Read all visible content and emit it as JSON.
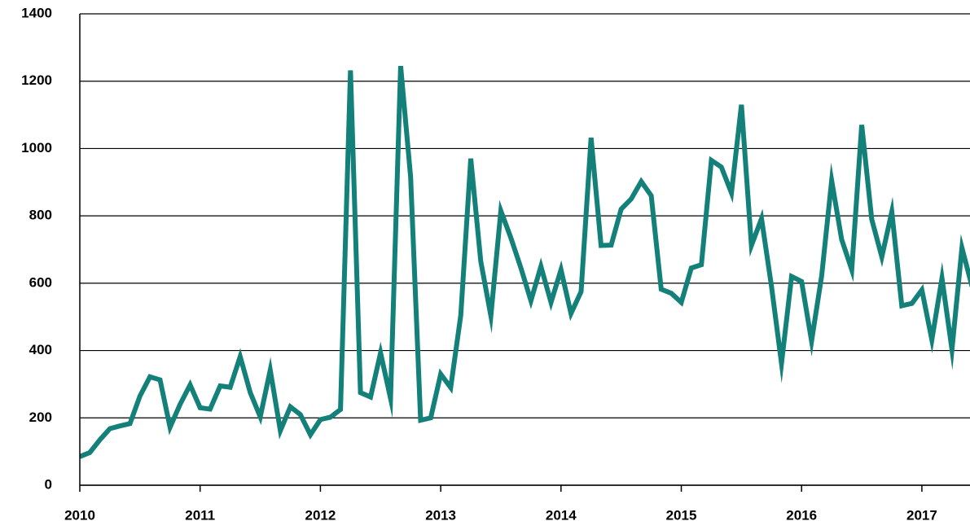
{
  "chart_data": {
    "type": "line",
    "x": [
      2010,
      2010.083,
      2010.167,
      2010.25,
      2010.333,
      2010.417,
      2010.5,
      2010.583,
      2010.667,
      2010.75,
      2010.833,
      2010.917,
      2011,
      2011.083,
      2011.167,
      2011.25,
      2011.333,
      2011.417,
      2011.5,
      2011.583,
      2011.667,
      2011.75,
      2011.833,
      2011.917,
      2012,
      2012.083,
      2012.167,
      2012.25,
      2012.333,
      2012.417,
      2012.5,
      2012.583,
      2012.667,
      2012.75,
      2012.833,
      2012.917,
      2013,
      2013.083,
      2013.167,
      2013.25,
      2013.333,
      2013.417,
      2013.5,
      2013.583,
      2013.667,
      2013.75,
      2013.833,
      2013.917,
      2014,
      2014.083,
      2014.167,
      2014.25,
      2014.333,
      2014.417,
      2014.5,
      2014.583,
      2014.667,
      2014.75,
      2014.833,
      2014.917,
      2015,
      2015.083,
      2015.167,
      2015.25,
      2015.333,
      2015.417,
      2015.5,
      2015.583,
      2015.667,
      2015.75,
      2015.833,
      2015.917,
      2016,
      2016.083,
      2016.167,
      2016.25,
      2016.333,
      2016.417,
      2016.5,
      2016.583,
      2016.667,
      2016.75,
      2016.833,
      2016.917,
      2017,
      2017.083,
      2017.167,
      2017.25,
      2017.333,
      2017.417
    ],
    "series": [
      {
        "color": "#138079",
        "values": [
          85,
          97,
          135,
          168,
          176,
          183,
          265,
          322,
          313,
          172,
          240,
          298,
          230,
          226,
          295,
          291,
          382,
          275,
          203,
          342,
          162,
          233,
          210,
          150,
          195,
          202,
          225,
          1232,
          275,
          262,
          393,
          258,
          1245,
          915,
          193,
          200,
          330,
          290,
          505,
          970,
          665,
          503,
          815,
          735,
          645,
          548,
          650,
          543,
          640,
          510,
          575,
          1032,
          712,
          713,
          820,
          850,
          902,
          860,
          582,
          570,
          543,
          645,
          655,
          965,
          945,
          868,
          1130,
          712,
          792,
          590,
          362,
          620,
          605,
          428,
          622,
          905,
          730,
          640,
          1070,
          790,
          678,
          812,
          533,
          540,
          580,
          432,
          615,
          403,
          705,
          590
        ]
      }
    ],
    "xlim": [
      2010,
      2017.4
    ],
    "xticks": [
      2010,
      2011,
      2012,
      2013,
      2014,
      2015,
      2016,
      2017
    ],
    "ylim": [
      0,
      1400
    ],
    "yticks": [
      0,
      200,
      400,
      600,
      800,
      1000,
      1200,
      1400
    ],
    "grid": true
  }
}
